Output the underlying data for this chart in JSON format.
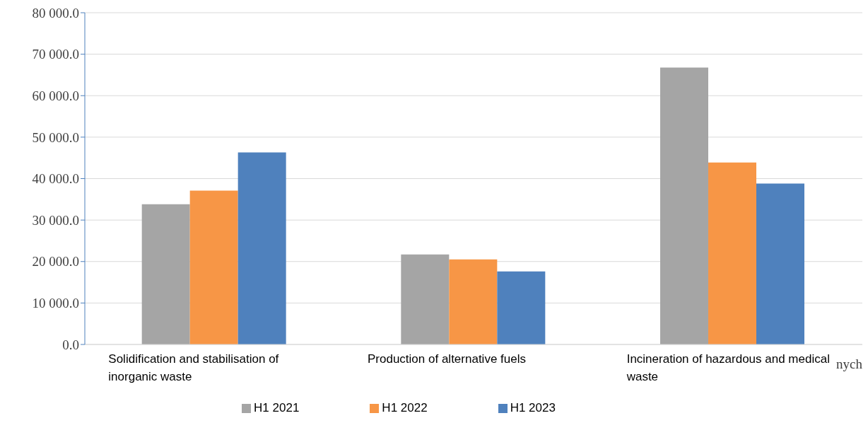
{
  "chart_data": {
    "type": "bar",
    "categories": [
      "Solidification and stabilisation of inorganic waste",
      "Production of alternative fuels",
      "Incineration of hazardous and medical waste"
    ],
    "series": [
      {
        "name": "H1 2021",
        "color": "#a5a5a5",
        "values": [
          33800,
          21700,
          66800
        ]
      },
      {
        "name": "H1 2022",
        "color": "#f79646",
        "values": [
          37100,
          20500,
          43900
        ]
      },
      {
        "name": "H1 2023",
        "color": "#4f81bd",
        "values": [
          46300,
          17600,
          38800
        ]
      }
    ],
    "ylim": [
      0,
      80000
    ],
    "yticks": [
      {
        "value": 0,
        "label": "0.0"
      },
      {
        "value": 10000,
        "label": "10 000.0"
      },
      {
        "value": 20000,
        "label": "20 000.0"
      },
      {
        "value": 30000,
        "label": "30 000.0"
      },
      {
        "value": 40000,
        "label": "40 000.0"
      },
      {
        "value": 50000,
        "label": "50 000.0"
      },
      {
        "value": 60000,
        "label": "60 000.0"
      },
      {
        "value": 70000,
        "label": "70 000.0"
      },
      {
        "value": 80000,
        "label": "80 000.0"
      }
    ],
    "grid": "y",
    "legend": "bottom",
    "annotations": [
      "nych"
    ]
  }
}
